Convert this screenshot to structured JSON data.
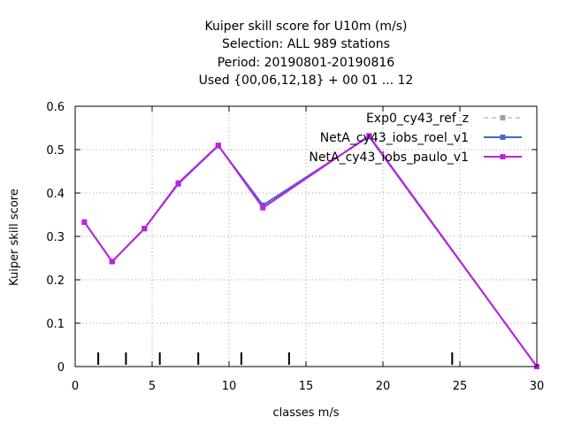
{
  "chart_data": {
    "type": "line",
    "title_lines": [
      "Kuiper skill score  for U10m (m/s)",
      "Selection: ALL    989 stations",
      "Period: 20190801-20190816",
      "Used {00,06,12,18} + 00 01 ... 12"
    ],
    "xlabel": "classes m/s",
    "ylabel": "Kuiper skill score",
    "xlim": [
      0,
      30
    ],
    "ylim": [
      0,
      0.6
    ],
    "xticks": [
      0,
      5,
      10,
      15,
      20,
      25,
      30
    ],
    "yticks": [
      0,
      0.1,
      0.2,
      0.3,
      0.4,
      0.5,
      0.6
    ],
    "ytick_labels": [
      "0",
      "0.1",
      "0.2",
      "0.3",
      "0.4",
      "0.5",
      "0.6"
    ],
    "grid": true,
    "legend_position": "top-right",
    "class_marks": [
      1.5,
      3.3,
      5.5,
      8.0,
      10.8,
      13.9,
      24.5
    ],
    "series": [
      {
        "name": "Exp0_cy43_ref_z",
        "color": "#a0a0a0",
        "dash": "dashed",
        "x": [
          0.6,
          2.4,
          4.5,
          6.7,
          9.3,
          12.2,
          19.1,
          30
        ],
        "y": [
          0.333,
          0.242,
          0.318,
          0.421,
          0.509,
          0.368,
          0.53,
          0.0
        ]
      },
      {
        "name": "NetA_cy43_iobs_roel_v1",
        "color": "#4169c8",
        "dash": "solid",
        "x": [
          0.6,
          2.4,
          4.5,
          6.7,
          9.3,
          12.2,
          19.1,
          30
        ],
        "y": [
          0.333,
          0.242,
          0.318,
          0.421,
          0.509,
          0.372,
          0.53,
          0.0
        ]
      },
      {
        "name": "NetA_cy43_iobs_paulo_v1",
        "color": "#c020e0",
        "dash": "solid",
        "x": [
          0.6,
          2.4,
          4.5,
          6.7,
          9.3,
          12.2,
          19.1,
          30
        ],
        "y": [
          0.333,
          0.242,
          0.318,
          0.423,
          0.51,
          0.366,
          0.532,
          0.0
        ]
      }
    ]
  }
}
